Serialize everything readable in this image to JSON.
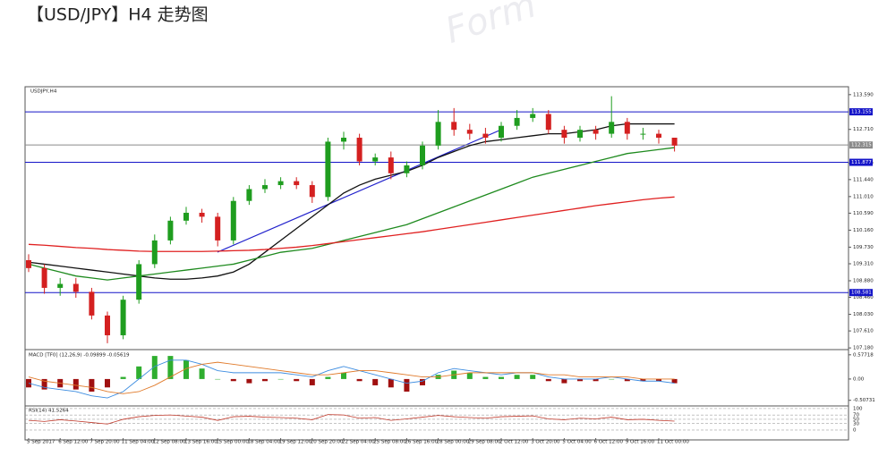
{
  "chart_data": {
    "type": "candlestick",
    "title": "【USD/JPY】H4 走势图",
    "symbol_label": "USDJPY,H4",
    "categories": [
      "5 Sep 2017",
      null,
      "6 Sep 12:00",
      null,
      "7 Sep 20:00",
      null,
      "11 Sep 04:00",
      null,
      "12 Sep 08:00",
      null,
      "13 Sep 16:00",
      null,
      "15 Sep 00:00",
      null,
      "18 Sep 04:00",
      null,
      "19 Sep 12:00",
      null,
      "20 Sep 20:00",
      null,
      "22 Sep 04:00",
      null,
      "25 Sep 08:00",
      null,
      "26 Sep 16:00",
      null,
      "28 Sep 00:00",
      null,
      "29 Sep 08:00",
      null,
      "2 Oct 12:00",
      null,
      "3 Oct 20:00",
      null,
      "5 Oct 04:00",
      null,
      "6 Oct 12:00",
      null,
      "9 Oct 16:00",
      null,
      "11 Oct 00:00",
      null
    ],
    "open": [
      109.4,
      109.2,
      108.7,
      108.8,
      108.6,
      108.0,
      107.5,
      108.4,
      109.3,
      109.9,
      110.4,
      110.6,
      110.5,
      109.9,
      110.9,
      111.2,
      111.3,
      111.4,
      111.3,
      111.0,
      112.4,
      112.5,
      111.9,
      112.0,
      111.6,
      111.8,
      112.3,
      112.9,
      112.7,
      112.6,
      112.5,
      112.8,
      113.0,
      113.1,
      112.7,
      112.5,
      112.7,
      112.6,
      112.9,
      112.6,
      112.6,
      112.5
    ],
    "high": [
      109.55,
      109.3,
      108.95,
      108.95,
      108.7,
      108.1,
      108.5,
      109.4,
      110.05,
      110.5,
      110.75,
      110.7,
      110.6,
      111.0,
      111.3,
      111.45,
      111.5,
      111.5,
      111.4,
      112.5,
      112.65,
      112.6,
      112.1,
      112.15,
      111.9,
      112.4,
      113.2,
      113.25,
      112.85,
      112.75,
      112.9,
      113.2,
      113.25,
      113.2,
      112.8,
      112.8,
      112.8,
      113.55,
      113.0,
      112.75,
      112.7,
      112.5
    ],
    "low": [
      109.1,
      108.55,
      108.5,
      108.45,
      107.9,
      107.3,
      107.4,
      108.3,
      109.2,
      109.8,
      110.3,
      110.35,
      109.75,
      109.8,
      110.8,
      111.1,
      111.2,
      111.2,
      110.85,
      110.9,
      112.2,
      111.8,
      111.8,
      111.45,
      111.5,
      111.7,
      112.2,
      112.55,
      112.45,
      112.35,
      112.4,
      112.7,
      112.9,
      112.6,
      112.35,
      112.4,
      112.45,
      112.5,
      112.45,
      112.45,
      112.35,
      112.15
    ],
    "close": [
      109.2,
      108.7,
      108.8,
      108.6,
      108.0,
      107.5,
      108.4,
      109.3,
      109.9,
      110.4,
      110.6,
      110.5,
      109.9,
      110.9,
      111.2,
      111.3,
      111.4,
      111.3,
      111.0,
      112.4,
      112.5,
      111.9,
      112.0,
      111.6,
      111.8,
      112.3,
      112.9,
      112.7,
      112.6,
      112.5,
      112.8,
      113.0,
      113.1,
      112.7,
      112.5,
      112.7,
      112.6,
      112.9,
      112.6,
      112.6,
      112.5,
      112.3
    ],
    "up_color": "#1f9d1f",
    "down_color": "#d42020",
    "overlays": [
      {
        "color": "#111111",
        "values": [
          109.35,
          109.3,
          109.25,
          109.2,
          109.15,
          109.1,
          109.05,
          109.0,
          108.95,
          108.92,
          108.92,
          108.95,
          109.0,
          109.1,
          109.3,
          109.6,
          109.9,
          110.2,
          110.5,
          110.8,
          111.1,
          111.3,
          111.45,
          111.55,
          111.65,
          111.8,
          112.0,
          112.15,
          112.3,
          112.4,
          112.45,
          112.5,
          112.55,
          112.6,
          112.6,
          112.65,
          112.7,
          112.8,
          112.85,
          112.85,
          112.85,
          112.85
        ]
      },
      {
        "color": "#1e8a1e",
        "values": [
          109.3,
          109.2,
          109.1,
          109.0,
          108.95,
          108.9,
          108.95,
          109.0,
          109.05,
          109.1,
          109.15,
          109.2,
          109.25,
          109.3,
          109.4,
          109.5,
          109.6,
          109.65,
          109.7,
          109.8,
          109.9,
          110.0,
          110.1,
          110.2,
          110.3,
          110.45,
          110.6,
          110.75,
          110.9,
          111.05,
          111.2,
          111.35,
          111.5,
          111.6,
          111.7,
          111.8,
          111.9,
          112.0,
          112.1,
          112.15,
          112.2,
          112.25
        ]
      },
      {
        "color": "#e02020",
        "values": [
          109.8,
          109.78,
          109.75,
          109.72,
          109.7,
          109.67,
          109.65,
          109.63,
          109.62,
          109.62,
          109.62,
          109.62,
          109.63,
          109.64,
          109.65,
          109.67,
          109.7,
          109.73,
          109.77,
          109.82,
          109.87,
          109.92,
          109.97,
          110.02,
          110.07,
          110.12,
          110.18,
          110.24,
          110.3,
          110.36,
          110.42,
          110.48,
          110.54,
          110.6,
          110.66,
          110.72,
          110.78,
          110.83,
          110.88,
          110.93,
          110.97,
          111.0
        ]
      }
    ],
    "hlines": [
      {
        "value": 113.155,
        "color": "#1414c8"
      },
      {
        "value": 112.315,
        "color": "#8a8a8a"
      },
      {
        "value": 111.877,
        "color": "#1414c8"
      },
      {
        "value": 108.581,
        "color": "#1414c8"
      }
    ],
    "ylim": [
      107.16,
      113.79
    ],
    "yticks": [
      {
        "value": 113.59,
        "label": "113.590"
      },
      {
        "value": 112.71,
        "label": "112.710"
      },
      {
        "value": 111.85,
        "label": "111.850"
      },
      {
        "value": 111.44,
        "label": "111.440"
      },
      {
        "value": 111.01,
        "label": "111.010"
      },
      {
        "value": 110.59,
        "label": "110.590"
      },
      {
        "value": 110.16,
        "label": "110.160"
      },
      {
        "value": 109.73,
        "label": "109.730"
      },
      {
        "value": 109.31,
        "label": "109.310"
      },
      {
        "value": 108.88,
        "label": "108.880"
      },
      {
        "value": 108.46,
        "label": "108.460"
      },
      {
        "value": 108.03,
        "label": "108.030"
      },
      {
        "value": 107.61,
        "label": "107.610"
      },
      {
        "value": 107.18,
        "label": "107.180"
      }
    ],
    "macd": {
      "title": "MACD [TF0] (12,26,9) -0.09899 -0.05619",
      "pos_color": "#2fae2f",
      "neg_color": "#a01010",
      "values": [
        -0.2,
        -0.25,
        -0.2,
        -0.25,
        -0.3,
        -0.2,
        0.05,
        0.3,
        0.55,
        0.55,
        0.45,
        0.25,
        0.0,
        -0.05,
        -0.1,
        -0.05,
        0.0,
        -0.05,
        -0.15,
        0.05,
        0.15,
        -0.05,
        -0.15,
        -0.2,
        -0.3,
        -0.15,
        0.1,
        0.2,
        0.15,
        0.05,
        0.05,
        0.1,
        0.1,
        -0.05,
        -0.1,
        -0.05,
        -0.05,
        0.0,
        -0.05,
        -0.05,
        -0.05,
        -0.1
      ],
      "lines": [
        {
          "color": "#3c8ce0",
          "values": [
            -0.1,
            -0.2,
            -0.25,
            -0.3,
            -0.4,
            -0.45,
            -0.3,
            0.0,
            0.3,
            0.45,
            0.45,
            0.35,
            0.2,
            0.15,
            0.15,
            0.15,
            0.15,
            0.1,
            0.05,
            0.2,
            0.3,
            0.2,
            0.1,
            0.0,
            -0.1,
            -0.05,
            0.15,
            0.25,
            0.2,
            0.15,
            0.1,
            0.15,
            0.15,
            0.05,
            0.0,
            0.0,
            0.0,
            0.05,
            0.0,
            -0.05,
            -0.05,
            -0.1
          ]
        },
        {
          "color": "#e07a2a",
          "values": [
            0.05,
            -0.05,
            -0.1,
            -0.15,
            -0.2,
            -0.3,
            -0.35,
            -0.3,
            -0.15,
            0.05,
            0.25,
            0.35,
            0.4,
            0.35,
            0.3,
            0.25,
            0.2,
            0.15,
            0.1,
            0.1,
            0.15,
            0.2,
            0.2,
            0.15,
            0.1,
            0.05,
            0.05,
            0.1,
            0.15,
            0.15,
            0.15,
            0.15,
            0.15,
            0.1,
            0.1,
            0.05,
            0.05,
            0.05,
            0.05,
            0.0,
            0.0,
            0.0
          ]
        }
      ],
      "ylim": [
        -0.62,
        0.68
      ],
      "yticks": [
        0.57718,
        {
          "value": 0,
          "label": "0.00"
        },
        -0.50731
      ]
    },
    "rsi": {
      "title": "RSI(14) 41.5264",
      "color": "#c0392b",
      "values": [
        45,
        40,
        48,
        42,
        35,
        28,
        50,
        62,
        68,
        70,
        65,
        60,
        45,
        62,
        64,
        60,
        58,
        55,
        48,
        72,
        70,
        55,
        58,
        45,
        52,
        60,
        68,
        62,
        58,
        55,
        62,
        64,
        66,
        52,
        48,
        55,
        52,
        60,
        48,
        50,
        45,
        41.5264
      ],
      "ylim": [
        -37.5,
        108
      ],
      "yticks": [
        100,
        70,
        50,
        30,
        0
      ]
    }
  }
}
